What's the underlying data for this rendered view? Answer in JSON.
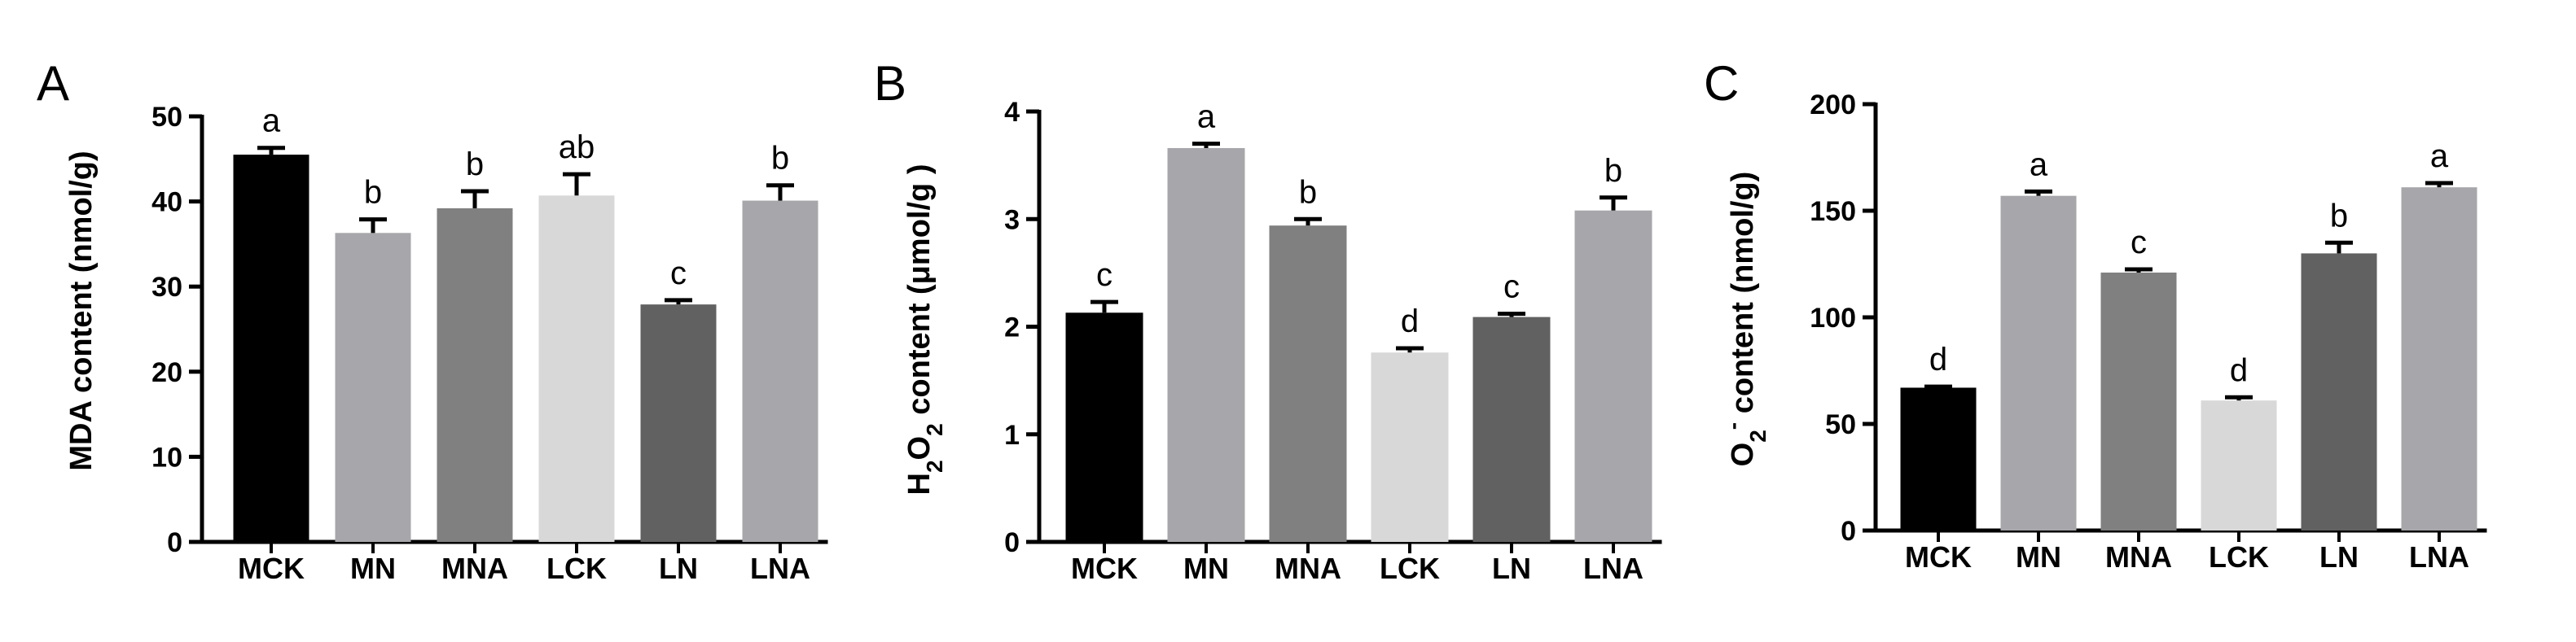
{
  "chart_data": [
    {
      "type": "bar",
      "panel": "A",
      "ylabel": "MDA content (nmol/g)",
      "ylim": [
        0,
        50
      ],
      "yticks": [
        0,
        10,
        20,
        30,
        40,
        50
      ],
      "categories": [
        "MCK",
        "MN",
        "MNA",
        "LCK",
        "LN",
        "LNA"
      ],
      "values": [
        45.5,
        36.3,
        39.2,
        40.7,
        27.9,
        40.1
      ],
      "errors": [
        0.8,
        1.6,
        2.0,
        2.5,
        0.5,
        1.8
      ],
      "significance": [
        "a",
        "b",
        "b",
        "ab",
        "c",
        "b"
      ],
      "colors": [
        "#000000",
        "#a7a7ab",
        "#808080",
        "#d8d8d8",
        "#616161",
        "#a7a7ab"
      ],
      "grid": false,
      "legend": "none"
    },
    {
      "type": "bar",
      "panel": "B",
      "ylabel": "H2O2 content (μmol/g )",
      "ylabel_parts": [
        "H",
        "2",
        "O",
        "2",
        " content (μmol/g )"
      ],
      "ylim": [
        0,
        4
      ],
      "yticks": [
        0,
        1,
        2,
        3,
        4
      ],
      "categories": [
        "MCK",
        "MN",
        "MNA",
        "LCK",
        "LN",
        "LNA"
      ],
      "values": [
        2.13,
        3.66,
        2.94,
        1.76,
        2.09,
        3.08
      ],
      "errors": [
        0.1,
        0.04,
        0.06,
        0.04,
        0.03,
        0.12
      ],
      "significance": [
        "c",
        "a",
        "b",
        "d",
        "c",
        "b"
      ],
      "colors": [
        "#000000",
        "#a7a7ab",
        "#808080",
        "#d8d8d8",
        "#616161",
        "#a7a7ab"
      ],
      "grid": false,
      "legend": "none"
    },
    {
      "type": "bar",
      "panel": "C",
      "ylabel": "O2- content (nmol/g)",
      "ylabel_parts": [
        "O",
        "2",
        "-",
        " content (nmol/g)"
      ],
      "ylim": [
        0,
        200
      ],
      "yticks": [
        0,
        50,
        100,
        150,
        200
      ],
      "categories": [
        "MCK",
        "MN",
        "MNA",
        "LCK",
        "LN",
        "LNA"
      ],
      "values": [
        67,
        157,
        121,
        61,
        130,
        161
      ],
      "errors": [
        0.5,
        2,
        1.5,
        1.5,
        5,
        2
      ],
      "significance": [
        "d",
        "a",
        "c",
        "d",
        "b",
        "a"
      ],
      "colors": [
        "#000000",
        "#a7a7ab",
        "#808080",
        "#d8d8d8",
        "#616161",
        "#a7a7ab"
      ],
      "grid": false,
      "legend": "none"
    }
  ]
}
